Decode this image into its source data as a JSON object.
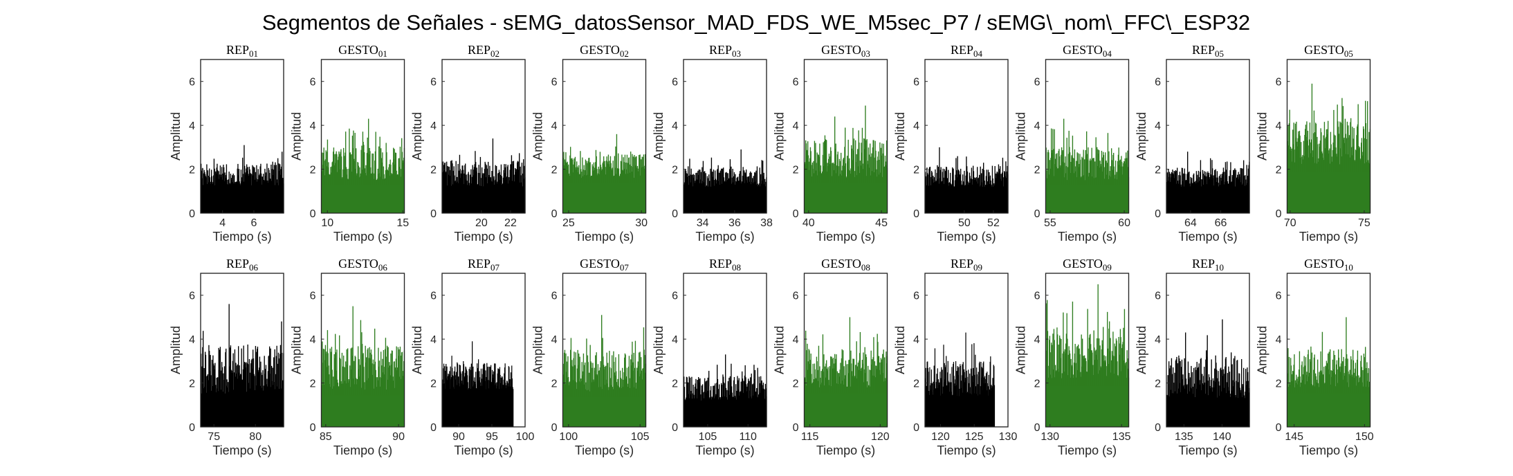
{
  "figure": {
    "title": "Segmentos de Señales - sEMG_datosSensor_MAD_FDS_WE_M5sec_P7 / sEMG\\_nom\\_FFC\\_ESP32"
  },
  "colors": {
    "rep": "#000000",
    "gesto": "#2e7d1f"
  },
  "chart_data": [
    {
      "type": "area",
      "title": "REP_01",
      "xlabel": "Tiempo (s)",
      "ylabel": "Amplitud",
      "xlim": [
        2.6,
        7.9
      ],
      "ylim": [
        0,
        7
      ],
      "xticks": [
        4,
        6
      ],
      "yticks": [
        0,
        2,
        4,
        6
      ],
      "x_range": [
        2.6,
        7.9
      ],
      "base_level": 1.25,
      "peak_level": 3.1,
      "color": "#000000",
      "series": [
        {
          "name": "REP_01"
        }
      ]
    },
    {
      "type": "area",
      "title": "GESTO_01",
      "xlabel": "Tiempo (s)",
      "ylabel": "Amplitud",
      "xlim": [
        9.6,
        15.1
      ],
      "ylim": [
        0,
        7
      ],
      "xticks": [
        10,
        15
      ],
      "yticks": [
        0,
        2,
        4,
        6
      ],
      "x_range": [
        9.6,
        15.1
      ],
      "base_level": 1.5,
      "peak_level": 4.3,
      "color": "#2e7d1f",
      "series": [
        {
          "name": "GESTO_01"
        }
      ]
    },
    {
      "type": "area",
      "title": "REP_02",
      "xlabel": "Tiempo (s)",
      "ylabel": "Amplitud",
      "xlim": [
        17.3,
        23.0
      ],
      "ylim": [
        0,
        7
      ],
      "xticks": [
        20,
        22
      ],
      "yticks": [
        0,
        2,
        4,
        6
      ],
      "x_range": [
        17.3,
        23.0
      ],
      "base_level": 1.2,
      "peak_level": 3.4,
      "color": "#000000",
      "series": [
        {
          "name": "REP_02"
        }
      ]
    },
    {
      "type": "area",
      "title": "GESTO_02",
      "xlabel": "Tiempo (s)",
      "ylabel": "Amplitud",
      "xlim": [
        24.6,
        30.3
      ],
      "ylim": [
        0,
        7
      ],
      "xticks": [
        25,
        30
      ],
      "yticks": [
        0,
        2,
        4,
        6
      ],
      "x_range": [
        24.6,
        30.3
      ],
      "base_level": 1.6,
      "peak_level": 3.6,
      "color": "#2e7d1f",
      "series": [
        {
          "name": "GESTO_02"
        }
      ]
    },
    {
      "type": "area",
      "title": "REP_03",
      "xlabel": "Tiempo (s)",
      "ylabel": "Amplitud",
      "xlim": [
        32.8,
        38.0
      ],
      "ylim": [
        0,
        7
      ],
      "xticks": [
        34,
        36,
        38
      ],
      "yticks": [
        0,
        2,
        4,
        6
      ],
      "x_range": [
        32.8,
        38.0
      ],
      "base_level": 1.2,
      "peak_level": 2.9,
      "color": "#000000",
      "series": [
        {
          "name": "REP_03"
        }
      ]
    },
    {
      "type": "area",
      "title": "GESTO_03",
      "xlabel": "Tiempo (s)",
      "ylabel": "Amplitud",
      "xlim": [
        39.7,
        45.4
      ],
      "ylim": [
        0,
        7
      ],
      "xticks": [
        40,
        45
      ],
      "yticks": [
        0,
        2,
        4,
        6
      ],
      "x_range": [
        39.7,
        45.4
      ],
      "base_level": 1.6,
      "peak_level": 4.9,
      "color": "#2e7d1f",
      "series": [
        {
          "name": "GESTO_03"
        }
      ]
    },
    {
      "type": "area",
      "title": "REP_04",
      "xlabel": "Tiempo (s)",
      "ylabel": "Amplitud",
      "xlim": [
        47.3,
        53.0
      ],
      "ylim": [
        0,
        7
      ],
      "xticks": [
        50,
        52
      ],
      "yticks": [
        0,
        2,
        4,
        6
      ],
      "x_range": [
        47.3,
        53.0
      ],
      "base_level": 1.2,
      "peak_level": 3.0,
      "color": "#000000",
      "series": [
        {
          "name": "REP_04"
        }
      ]
    },
    {
      "type": "area",
      "title": "GESTO_04",
      "xlabel": "Tiempo (s)",
      "ylabel": "Amplitud",
      "xlim": [
        54.7,
        60.3
      ],
      "ylim": [
        0,
        7
      ],
      "xticks": [
        55,
        60
      ],
      "yticks": [
        0,
        2,
        4,
        6
      ],
      "x_range": [
        54.7,
        60.3
      ],
      "base_level": 1.5,
      "peak_level": 4.3,
      "color": "#2e7d1f",
      "series": [
        {
          "name": "GESTO_04"
        }
      ]
    },
    {
      "type": "area",
      "title": "REP_05",
      "xlabel": "Tiempo (s)",
      "ylabel": "Amplitud",
      "xlim": [
        62.4,
        67.9
      ],
      "ylim": [
        0,
        7
      ],
      "xticks": [
        64,
        66
      ],
      "yticks": [
        0,
        2,
        4,
        6
      ],
      "x_range": [
        62.4,
        67.9
      ],
      "base_level": 1.2,
      "peak_level": 2.8,
      "color": "#000000",
      "series": [
        {
          "name": "REP_05"
        }
      ]
    },
    {
      "type": "area",
      "title": "GESTO_05",
      "xlabel": "Tiempo (s)",
      "ylabel": "Amplitud",
      "xlim": [
        69.8,
        75.4
      ],
      "ylim": [
        0,
        7
      ],
      "xticks": [
        70,
        75
      ],
      "yticks": [
        0,
        2,
        4,
        6
      ],
      "x_range": [
        69.8,
        75.4
      ],
      "base_level": 2.2,
      "peak_level": 5.9,
      "color": "#2e7d1f",
      "series": [
        {
          "name": "GESTO_05"
        }
      ]
    },
    {
      "type": "area",
      "title": "REP_06",
      "xlabel": "Tiempo (s)",
      "ylabel": "Amplitud",
      "xlim": [
        73.4,
        83.4
      ],
      "ylim": [
        0,
        7
      ],
      "xticks": [
        75,
        80
      ],
      "yticks": [
        0,
        2,
        4,
        6
      ],
      "x_range": [
        73.4,
        83.4
      ],
      "base_level": 1.5,
      "peak_level": 5.6,
      "color": "#000000",
      "series": [
        {
          "name": "REP_06"
        }
      ]
    },
    {
      "type": "area",
      "title": "GESTO_06",
      "xlabel": "Tiempo (s)",
      "ylabel": "Amplitud",
      "xlim": [
        84.7,
        90.4
      ],
      "ylim": [
        0,
        7
      ],
      "xticks": [
        85,
        90
      ],
      "yticks": [
        0,
        2,
        4,
        6
      ],
      "x_range": [
        84.7,
        90.4
      ],
      "base_level": 1.7,
      "peak_level": 5.5,
      "color": "#2e7d1f",
      "series": [
        {
          "name": "GESTO_06"
        }
      ]
    },
    {
      "type": "area",
      "title": "REP_07",
      "xlabel": "Tiempo (s)",
      "ylabel": "Amplitud",
      "xlim": [
        87.5,
        100
      ],
      "ylim": [
        0,
        7
      ],
      "xticks": [
        90,
        95,
        100
      ],
      "yticks": [
        0,
        2,
        4,
        6
      ],
      "x_range": [
        87.5,
        98.2
      ],
      "base_level": 1.7,
      "peak_level": 3.9,
      "color": "#000000",
      "series": [
        {
          "name": "REP_07"
        }
      ]
    },
    {
      "type": "area",
      "title": "GESTO_07",
      "xlabel": "Tiempo (s)",
      "ylabel": "Amplitud",
      "xlim": [
        99.6,
        105.4
      ],
      "ylim": [
        0,
        7
      ],
      "xticks": [
        100,
        105
      ],
      "yticks": [
        0,
        2,
        4,
        6
      ],
      "x_range": [
        99.6,
        105.4
      ],
      "base_level": 1.6,
      "peak_level": 5.1,
      "color": "#2e7d1f",
      "series": [
        {
          "name": "GESTO_07"
        }
      ]
    },
    {
      "type": "area",
      "title": "REP_08",
      "xlabel": "Tiempo (s)",
      "ylabel": "Amplitud",
      "xlim": [
        102.0,
        112.3
      ],
      "ylim": [
        0,
        7
      ],
      "xticks": [
        105,
        110
      ],
      "yticks": [
        0,
        2,
        4,
        6
      ],
      "x_range": [
        102.0,
        112.3
      ],
      "base_level": 1.2,
      "peak_level": 3.3,
      "color": "#000000",
      "series": [
        {
          "name": "REP_08"
        }
      ]
    },
    {
      "type": "area",
      "title": "GESTO_08",
      "xlabel": "Tiempo (s)",
      "ylabel": "Amplitud",
      "xlim": [
        114.6,
        120.5
      ],
      "ylim": [
        0,
        7
      ],
      "xticks": [
        115,
        120
      ],
      "yticks": [
        0,
        2,
        4,
        6
      ],
      "x_range": [
        114.6,
        120.5
      ],
      "base_level": 1.8,
      "peak_level": 5.0,
      "color": "#2e7d1f",
      "series": [
        {
          "name": "GESTO_08"
        }
      ]
    },
    {
      "type": "area",
      "title": "REP_09",
      "xlabel": "Tiempo (s)",
      "ylabel": "Amplitud",
      "xlim": [
        117.7,
        130
      ],
      "ylim": [
        0,
        7
      ],
      "xticks": [
        120,
        125,
        130
      ],
      "yticks": [
        0,
        2,
        4,
        6
      ],
      "x_range": [
        117.7,
        128.0
      ],
      "base_level": 1.4,
      "peak_level": 4.3,
      "color": "#000000",
      "series": [
        {
          "name": "REP_09"
        }
      ]
    },
    {
      "type": "area",
      "title": "GESTO_09",
      "xlabel": "Tiempo (s)",
      "ylabel": "Amplitud",
      "xlim": [
        129.7,
        135.5
      ],
      "ylim": [
        0,
        7
      ],
      "xticks": [
        130,
        135
      ],
      "yticks": [
        0,
        2,
        4,
        6
      ],
      "x_range": [
        129.7,
        135.5
      ],
      "base_level": 2.2,
      "peak_level": 6.5,
      "color": "#2e7d1f",
      "series": [
        {
          "name": "GESTO_09"
        }
      ]
    },
    {
      "type": "area",
      "title": "REP_10",
      "xlabel": "Tiempo (s)",
      "ylabel": "Amplitud",
      "xlim": [
        132.7,
        143.6
      ],
      "ylim": [
        0,
        7
      ],
      "xticks": [
        135,
        140
      ],
      "yticks": [
        0,
        2,
        4,
        6
      ],
      "x_range": [
        132.7,
        143.6
      ],
      "base_level": 1.3,
      "peak_level": 4.9,
      "color": "#000000",
      "series": [
        {
          "name": "REP_10"
        }
      ]
    },
    {
      "type": "area",
      "title": "GESTO_10",
      "xlabel": "Tiempo (s)",
      "ylabel": "Amplitud",
      "xlim": [
        144.5,
        150.4
      ],
      "ylim": [
        0,
        7
      ],
      "xticks": [
        145,
        150
      ],
      "yticks": [
        0,
        2,
        4,
        6
      ],
      "x_range": [
        144.5,
        150.4
      ],
      "base_level": 1.8,
      "peak_level": 5.0,
      "color": "#2e7d1f",
      "series": [
        {
          "name": "GESTO_10"
        }
      ]
    }
  ]
}
